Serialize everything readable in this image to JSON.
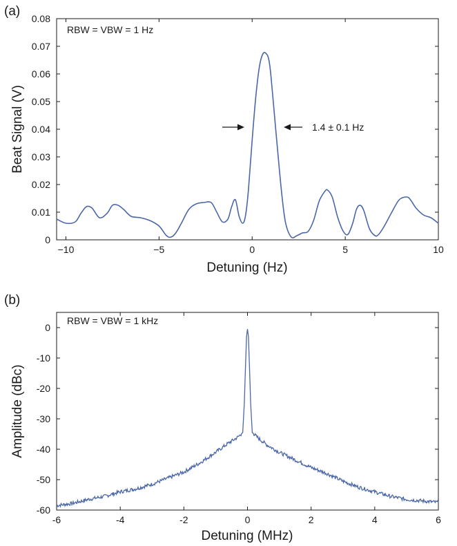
{
  "chart_data": [
    {
      "type": "line",
      "panel_label": "(a)",
      "xlabel": "Detuning (Hz)",
      "ylabel": "Beat Signal (V)",
      "xlim": [
        -10.5,
        10
      ],
      "ylim": [
        0,
        0.08
      ],
      "xticks": [
        -10,
        -5,
        0,
        5,
        10
      ],
      "xtick_labels": [
        "−10",
        "−5",
        "0",
        "5",
        "10"
      ],
      "yticks": [
        0,
        0.01,
        0.02,
        0.03,
        0.04,
        0.05,
        0.06,
        0.07,
        0.08
      ],
      "ytick_labels": [
        "0",
        "0.01",
        "0.02",
        "0.03",
        "0.04",
        "0.05",
        "0.06",
        "0.07",
        "0.08"
      ],
      "annotations": [
        "RBW = VBW = 1 Hz",
        "1.4 ± 0.1 Hz"
      ],
      "line_color": "#4a66a8",
      "grid": false,
      "series": [
        {
          "x": [
            -10.5,
            -10,
            -9.5,
            -9.2,
            -8.9,
            -8.6,
            -8.2,
            -7.8,
            -7.5,
            -7.2,
            -6.9,
            -6.5,
            -6.0,
            -5.5,
            -5.0,
            -4.6,
            -4.35,
            -4.1,
            -3.8,
            -3.4,
            -3.0,
            -2.6,
            -2.2,
            -1.9,
            -1.6,
            -1.3,
            -1.1,
            -0.9,
            -0.7,
            -0.5,
            -0.35,
            -0.2,
            0,
            0.2,
            0.4,
            0.6,
            0.8,
            0.9,
            1.0,
            1.2,
            1.4,
            1.6,
            1.8,
            2.1,
            2.4,
            2.7,
            3.0,
            3.3,
            3.6,
            3.9,
            4.05,
            4.3,
            4.6,
            4.9,
            5.15,
            5.4,
            5.6,
            5.8,
            6.0,
            6.3,
            6.6,
            6.8,
            7.1,
            7.5,
            7.9,
            8.3,
            8.5,
            8.8,
            9.2,
            9.6,
            10
          ],
          "y": [
            0.0075,
            0.006,
            0.0065,
            0.0095,
            0.012,
            0.0115,
            0.008,
            0.0095,
            0.0125,
            0.0125,
            0.011,
            0.0085,
            0.008,
            0.007,
            0.005,
            0.0015,
            0.001,
            0.0025,
            0.006,
            0.011,
            0.013,
            0.0135,
            0.0135,
            0.01,
            0.0065,
            0.0075,
            0.012,
            0.0145,
            0.0085,
            0.006,
            0.009,
            0.018,
            0.036,
            0.052,
            0.063,
            0.0675,
            0.067,
            0.065,
            0.06,
            0.045,
            0.03,
            0.016,
            0.006,
            0.001,
            0.0015,
            0.0025,
            0.003,
            0.007,
            0.014,
            0.0175,
            0.018,
            0.0155,
            0.008,
            0.003,
            0.002,
            0.006,
            0.011,
            0.0125,
            0.0105,
            0.004,
            0.0015,
            0.002,
            0.005,
            0.01,
            0.0145,
            0.0155,
            0.0145,
            0.0115,
            0.009,
            0.008,
            0.006
          ]
        }
      ]
    },
    {
      "type": "line",
      "panel_label": "(b)",
      "xlabel": "Detuning (MHz)",
      "ylabel": "Amplitude (dBc)",
      "xlim": [
        -6,
        6
      ],
      "ylim": [
        -60,
        5
      ],
      "xticks": [
        -6,
        -4,
        -2,
        0,
        2,
        4,
        6
      ],
      "xtick_labels": [
        "-6",
        "-4",
        "-2",
        "0",
        "2",
        "4",
        "6"
      ],
      "yticks": [
        -60,
        -50,
        -40,
        -30,
        -20,
        -10,
        0
      ],
      "ytick_labels": [
        "-60",
        "-50",
        "-40",
        "-30",
        "-20",
        "-10",
        "0"
      ],
      "annotations": [
        "RBW = VBW = 1 kHz"
      ],
      "line_color": "#4a66a8",
      "grid": false,
      "series": [
        {
          "x": [
            -6,
            -5.5,
            -5,
            -4.5,
            -4,
            -3.5,
            -3,
            -2.5,
            -2,
            -1.5,
            -1,
            -0.6,
            -0.3,
            -0.15,
            -0.1,
            -0.06,
            -0.03,
            0,
            0.03,
            0.06,
            0.1,
            0.15,
            0.3,
            0.6,
            1,
            1.5,
            2,
            2.5,
            3,
            3.5,
            4,
            4.5,
            5,
            5.5,
            6
          ],
          "y": [
            -58.5,
            -57.8,
            -56.5,
            -55.5,
            -54,
            -53,
            -51.5,
            -49.5,
            -47.5,
            -44.5,
            -41,
            -38,
            -36,
            -34.5,
            -25,
            -12,
            -3,
            -0.5,
            -3,
            -12,
            -25,
            -34.5,
            -36,
            -38.5,
            -41,
            -43.5,
            -46,
            -48,
            -50.5,
            -52.5,
            -54,
            -55.5,
            -56.5,
            -57,
            -57.5
          ]
        }
      ]
    }
  ]
}
